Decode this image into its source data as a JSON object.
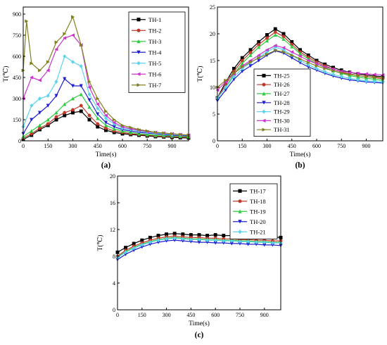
{
  "chart_data": [
    {
      "type": "line",
      "panel_label": "(a)",
      "xlabel": "Time(s)",
      "ylabel": "T(℃)",
      "xlim": [
        0,
        1000
      ],
      "ylim": [
        0,
        950
      ],
      "xticks": [
        0,
        150,
        300,
        450,
        600,
        750,
        900
      ],
      "yticks": [
        0,
        150,
        300,
        450,
        600,
        750,
        900
      ],
      "legend_position": "top-right",
      "series": [
        {
          "name": "TH-1",
          "color": "#000000",
          "marker": "square",
          "x": [
            0,
            50,
            100,
            150,
            200,
            250,
            300,
            350,
            400,
            450,
            500,
            550,
            600,
            650,
            700,
            750,
            800,
            850,
            900,
            950,
            1000
          ],
          "y": [
            10,
            40,
            80,
            110,
            150,
            180,
            200,
            210,
            150,
            100,
            75,
            60,
            50,
            45,
            40,
            35,
            30,
            28,
            25,
            22,
            20
          ]
        },
        {
          "name": "TH-2",
          "color": "#c0392b",
          "marker": "circle",
          "x": [
            0,
            50,
            100,
            150,
            200,
            250,
            300,
            350,
            400,
            450,
            500,
            550,
            600,
            650,
            700,
            750,
            800,
            850,
            900,
            950,
            1000
          ],
          "y": [
            20,
            50,
            90,
            120,
            170,
            200,
            220,
            250,
            180,
            120,
            90,
            70,
            60,
            50,
            45,
            40,
            35,
            32,
            30,
            28,
            25
          ]
        },
        {
          "name": "TH-3",
          "color": "#2ecc40",
          "marker": "triangle-up",
          "x": [
            0,
            50,
            100,
            150,
            200,
            250,
            300,
            350,
            400,
            450,
            500,
            550,
            600,
            650,
            700,
            750,
            800,
            850,
            900,
            950,
            1000
          ],
          "y": [
            30,
            70,
            110,
            150,
            200,
            260,
            300,
            330,
            240,
            160,
            110,
            85,
            70,
            60,
            50,
            45,
            40,
            38,
            35,
            32,
            30
          ]
        },
        {
          "name": "TH-4",
          "color": "#1f1fd1",
          "marker": "triangle-down",
          "x": [
            0,
            50,
            100,
            150,
            200,
            250,
            300,
            350,
            400,
            450,
            500,
            550,
            600,
            650,
            700,
            750,
            800,
            850,
            900,
            950,
            1000
          ],
          "y": [
            50,
            150,
            200,
            250,
            320,
            440,
            390,
            390,
            290,
            190,
            130,
            100,
            80,
            70,
            60,
            55,
            50,
            45,
            40,
            38,
            35
          ]
        },
        {
          "name": "TH-5",
          "color": "#5bd3ec",
          "marker": "diamond",
          "x": [
            0,
            50,
            100,
            150,
            200,
            250,
            300,
            350,
            400,
            450,
            500,
            550,
            600,
            650,
            700,
            750,
            800,
            850,
            900,
            950,
            1000
          ],
          "y": [
            100,
            250,
            300,
            320,
            420,
            600,
            560,
            530,
            330,
            230,
            160,
            120,
            90,
            80,
            70,
            60,
            55,
            50,
            45,
            42,
            40
          ]
        },
        {
          "name": "TH-6",
          "color": "#cc33cc",
          "marker": "triangle-left",
          "x": [
            0,
            50,
            100,
            150,
            200,
            250,
            300,
            350,
            400,
            450,
            500,
            550,
            600,
            650,
            700,
            750,
            800,
            850,
            900,
            950,
            1000
          ],
          "y": [
            300,
            450,
            430,
            500,
            650,
            730,
            750,
            680,
            380,
            260,
            180,
            130,
            100,
            85,
            75,
            65,
            60,
            55,
            50,
            45,
            40
          ]
        },
        {
          "name": "TH-7",
          "color": "#808020",
          "marker": "triangle-right",
          "x": [
            0,
            20,
            50,
            100,
            150,
            200,
            250,
            300,
            350,
            400,
            450,
            500,
            550,
            600,
            650,
            700,
            750,
            800,
            850,
            900,
            950,
            1000
          ],
          "y": [
            500,
            850,
            550,
            500,
            560,
            700,
            760,
            880,
            680,
            420,
            300,
            210,
            150,
            110,
            95,
            80,
            70,
            60,
            55,
            50,
            45,
            40
          ]
        }
      ]
    },
    {
      "type": "line",
      "panel_label": "(b)",
      "xlabel": "Time(s)",
      "ylabel": "T(℃)",
      "xlim": [
        0,
        1000
      ],
      "ylim": [
        0,
        25
      ],
      "xticks": [
        0,
        150,
        300,
        450,
        600,
        750,
        900
      ],
      "yticks": [
        0,
        5,
        10,
        15,
        20,
        25
      ],
      "legend_position": "bottom-right",
      "series": [
        {
          "name": "TH-25",
          "color": "#000000",
          "marker": "square",
          "x": [
            0,
            50,
            100,
            150,
            200,
            250,
            300,
            350,
            400,
            450,
            500,
            550,
            600,
            650,
            700,
            750,
            800,
            850,
            900,
            950,
            1000
          ],
          "y": [
            8,
            11,
            13.5,
            15.5,
            17,
            18.5,
            19.8,
            20.9,
            20,
            18.5,
            17,
            16,
            15,
            14.3,
            13.7,
            13.2,
            12.8,
            12.5,
            12.3,
            12.1,
            12
          ]
        },
        {
          "name": "TH-26",
          "color": "#c0392b",
          "marker": "circle",
          "x": [
            0,
            50,
            100,
            150,
            200,
            250,
            300,
            350,
            400,
            450,
            500,
            550,
            600,
            650,
            700,
            750,
            800,
            850,
            900,
            950,
            1000
          ],
          "y": [
            8,
            10.5,
            13,
            15,
            16.5,
            18,
            19.2,
            20.3,
            19.5,
            18,
            16.6,
            15.6,
            14.7,
            14,
            13.4,
            12.9,
            12.5,
            12.2,
            12,
            11.8,
            11.6
          ]
        },
        {
          "name": "TH-27",
          "color": "#2ecc40",
          "marker": "triangle-up",
          "x": [
            0,
            50,
            100,
            150,
            200,
            250,
            300,
            350,
            400,
            450,
            500,
            550,
            600,
            650,
            700,
            750,
            800,
            850,
            900,
            950,
            1000
          ],
          "y": [
            8,
            10,
            12.5,
            14.5,
            16,
            17.5,
            18.7,
            19.8,
            19,
            17.6,
            16.3,
            15.3,
            14.4,
            13.7,
            13.1,
            12.6,
            12.2,
            11.9,
            11.7,
            11.5,
            11.3
          ]
        },
        {
          "name": "TH-28",
          "color": "#1f1fd1",
          "marker": "triangle-down",
          "x": [
            0,
            50,
            100,
            150,
            200,
            250,
            300,
            350,
            400,
            450,
            500,
            550,
            600,
            650,
            700,
            750,
            800,
            850,
            900,
            950,
            1000
          ],
          "y": [
            7.5,
            9.5,
            11.5,
            13,
            14,
            15,
            16,
            16.8,
            16.4,
            15.5,
            14.6,
            13.8,
            13.2,
            12.6,
            12.1,
            11.7,
            11.4,
            11.2,
            11,
            10.9,
            10.8
          ]
        },
        {
          "name": "TH-29",
          "color": "#5bd3ec",
          "marker": "diamond",
          "x": [
            0,
            50,
            100,
            150,
            200,
            250,
            300,
            350,
            400,
            450,
            500,
            550,
            600,
            650,
            700,
            750,
            800,
            850,
            900,
            950,
            1000
          ],
          "y": [
            8,
            10,
            12,
            13.5,
            14.6,
            15.6,
            16.6,
            17.5,
            17,
            16,
            15,
            14.2,
            13.5,
            12.9,
            12.4,
            12,
            11.7,
            11.4,
            11.2,
            11.1,
            11
          ]
        },
        {
          "name": "TH-30",
          "color": "#cc33cc",
          "marker": "triangle-left",
          "x": [
            0,
            50,
            100,
            150,
            200,
            250,
            300,
            350,
            400,
            450,
            500,
            550,
            600,
            650,
            700,
            750,
            800,
            850,
            900,
            950,
            1000
          ],
          "y": [
            9.5,
            11,
            12.5,
            14,
            15,
            16,
            17,
            17.8,
            17.4,
            16.6,
            15.8,
            15,
            14.4,
            13.8,
            13.4,
            13,
            12.8,
            12.6,
            12.5,
            12.4,
            12.3
          ]
        },
        {
          "name": "TH-31",
          "color": "#808020",
          "marker": "triangle-right",
          "x": [
            0,
            50,
            100,
            150,
            200,
            250,
            300,
            350,
            400,
            450,
            500,
            550,
            600,
            650,
            700,
            750,
            800,
            850,
            900,
            950,
            1000
          ],
          "y": [
            10,
            11.3,
            12.6,
            13.8,
            14.7,
            15.5,
            16.2,
            16.9,
            16.6,
            16,
            15.3,
            14.6,
            14,
            13.5,
            13.1,
            12.7,
            12.4,
            12.2,
            12,
            11.9,
            11.8
          ]
        }
      ]
    },
    {
      "type": "line",
      "panel_label": "(c)",
      "xlabel": "Time(s)",
      "ylabel": "T(℃)",
      "xlim": [
        0,
        1000
      ],
      "ylim": [
        0,
        20
      ],
      "xticks": [
        0,
        150,
        300,
        450,
        600,
        750,
        900
      ],
      "yticks": [
        0,
        4,
        8,
        12,
        16,
        20
      ],
      "legend_position": "top-right",
      "series": [
        {
          "name": "TH-17",
          "color": "#000000",
          "marker": "square",
          "x": [
            0,
            50,
            100,
            150,
            200,
            250,
            300,
            350,
            400,
            450,
            500,
            550,
            600,
            650,
            700,
            750,
            800,
            850,
            900,
            950,
            1000
          ],
          "y": [
            8.6,
            9.3,
            9.9,
            10.4,
            10.8,
            11.1,
            11.3,
            11.4,
            11.3,
            11.2,
            11.2,
            11.1,
            11.2,
            11.1,
            11.1,
            11.0,
            11.1,
            11.0,
            10.9,
            10.9,
            10.8
          ]
        },
        {
          "name": "TH-18",
          "color": "#c0392b",
          "marker": "circle",
          "x": [
            0,
            50,
            100,
            150,
            200,
            250,
            300,
            350,
            400,
            450,
            500,
            550,
            600,
            650,
            700,
            750,
            800,
            850,
            900,
            950,
            1000
          ],
          "y": [
            8.0,
            8.9,
            9.5,
            10.0,
            10.4,
            10.7,
            10.9,
            11.0,
            10.9,
            10.8,
            10.8,
            10.7,
            10.7,
            10.6,
            10.6,
            10.5,
            10.5,
            10.4,
            10.4,
            10.3,
            10.3
          ]
        },
        {
          "name": "TH-19",
          "color": "#2ecc40",
          "marker": "triangle-up",
          "x": [
            0,
            50,
            100,
            150,
            200,
            250,
            300,
            350,
            400,
            450,
            500,
            550,
            600,
            650,
            700,
            750,
            800,
            850,
            900,
            950,
            1000
          ],
          "y": [
            7.9,
            8.7,
            9.3,
            9.8,
            10.2,
            10.5,
            10.7,
            10.8,
            10.7,
            10.6,
            10.6,
            10.5,
            10.5,
            10.4,
            10.4,
            10.3,
            10.3,
            10.2,
            10.2,
            10.1,
            10.1
          ]
        },
        {
          "name": "TH-20",
          "color": "#1f1fd1",
          "marker": "triangle-down",
          "x": [
            0,
            50,
            100,
            150,
            200,
            250,
            300,
            350,
            400,
            450,
            500,
            550,
            600,
            650,
            700,
            750,
            800,
            850,
            900,
            950,
            1000
          ],
          "y": [
            7.5,
            8.3,
            8.9,
            9.4,
            9.8,
            10.1,
            10.3,
            10.4,
            10.3,
            10.2,
            10.1,
            10.1,
            10.0,
            10.0,
            9.9,
            9.9,
            9.8,
            9.8,
            9.7,
            9.7,
            9.6
          ]
        },
        {
          "name": "TH-21",
          "color": "#5bd3ec",
          "marker": "diamond",
          "x": [
            0,
            50,
            100,
            150,
            200,
            250,
            300,
            350,
            400,
            450,
            500,
            550,
            600,
            650,
            700,
            750,
            800,
            850,
            900,
            950,
            1000
          ],
          "y": [
            7.8,
            8.6,
            9.2,
            9.7,
            10.1,
            10.4,
            10.6,
            10.7,
            10.6,
            10.5,
            10.5,
            10.4,
            10.4,
            10.3,
            10.3,
            10.2,
            10.2,
            10.1,
            10.1,
            10.0,
            10.0
          ]
        }
      ]
    }
  ]
}
